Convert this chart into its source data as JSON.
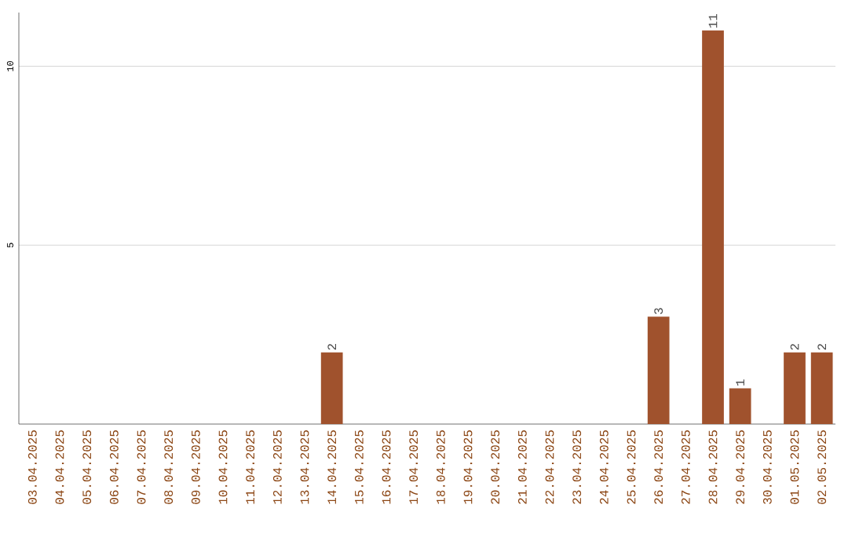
{
  "chart_data": {
    "type": "bar",
    "categories": [
      "03.04.2025",
      "04.04.2025",
      "05.04.2025",
      "06.04.2025",
      "07.04.2025",
      "08.04.2025",
      "09.04.2025",
      "10.04.2025",
      "11.04.2025",
      "12.04.2025",
      "13.04.2025",
      "14.04.2025",
      "15.04.2025",
      "16.04.2025",
      "17.04.2025",
      "18.04.2025",
      "19.04.2025",
      "20.04.2025",
      "21.04.2025",
      "22.04.2025",
      "23.04.2025",
      "24.04.2025",
      "25.04.2025",
      "26.04.2025",
      "27.04.2025",
      "28.04.2025",
      "29.04.2025",
      "30.04.2025",
      "01.05.2025",
      "02.05.2025"
    ],
    "values": [
      0,
      0,
      0,
      0,
      0,
      0,
      0,
      0,
      0,
      0,
      0,
      2,
      0,
      0,
      0,
      0,
      0,
      0,
      0,
      0,
      0,
      0,
      0,
      3,
      0,
      11,
      1,
      0,
      2,
      2
    ],
    "value_labels": [
      null,
      null,
      null,
      null,
      null,
      null,
      null,
      null,
      null,
      null,
      null,
      "2",
      null,
      null,
      null,
      null,
      null,
      null,
      null,
      null,
      null,
      null,
      null,
      "3",
      null,
      "11",
      "1",
      null,
      "2",
      "2"
    ],
    "color": "#a0522d",
    "ylim": [
      0,
      11.5
    ],
    "yticks": [
      5,
      10
    ],
    "grid": "y"
  }
}
